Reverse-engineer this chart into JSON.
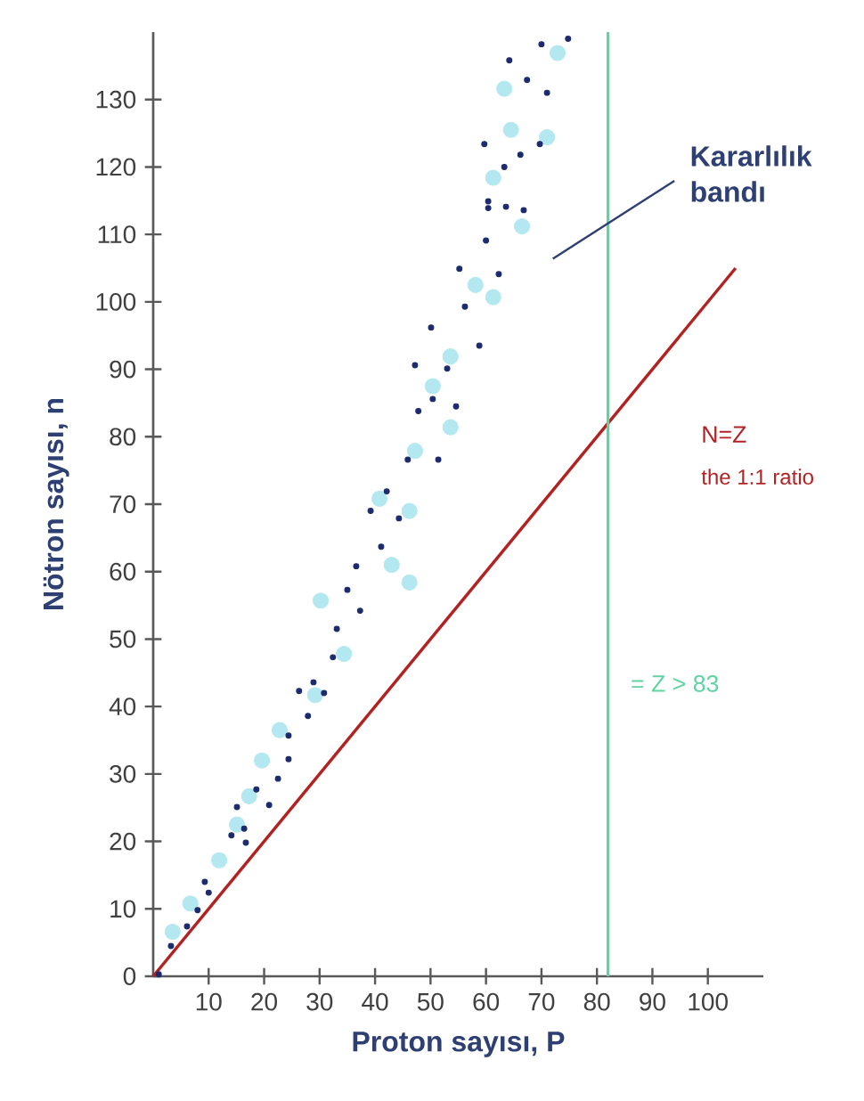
{
  "chart_data": {
    "type": "scatter",
    "xlabel": "Proton sayısı, P",
    "ylabel": "Nötron sayısı, n",
    "xlim": [
      0,
      110
    ],
    "ylim": [
      0,
      140
    ],
    "xticks": [
      10,
      20,
      30,
      40,
      50,
      60,
      70,
      80,
      90,
      100
    ],
    "yticks": [
      0,
      10,
      20,
      30,
      40,
      50,
      60,
      70,
      80,
      90,
      100,
      110,
      120,
      130
    ],
    "grid": false,
    "legend": false,
    "series": [
      {
        "color": "#b4e8f0",
        "x": [
          72.9,
          63.3,
          64.5,
          71.0,
          61.3,
          66.5,
          58.1,
          61.3,
          53.6,
          50.4,
          53.6,
          47.2,
          40.8,
          46.2,
          43.0,
          46.2,
          30.2,
          34.4,
          29.2,
          22.8,
          19.6,
          17.3,
          15.1,
          11.9,
          6.7,
          3.5
        ],
        "values": [
          136.9,
          131.6,
          125.5,
          124.4,
          118.4,
          111.2,
          102.5,
          100.7,
          91.9,
          87.5,
          81.4,
          77.9,
          70.8,
          69.0,
          61.0,
          58.4,
          55.7,
          47.8,
          41.7,
          36.5,
          32.0,
          26.7,
          22.5,
          17.2,
          10.8,
          6.6
        ]
      },
      {
        "color": "#1c2b6e",
        "x": [
          74.8,
          70.0,
          64.2,
          67.4,
          71.0,
          59.7,
          69.7,
          63.3,
          66.2,
          60.4,
          60.4,
          63.6,
          66.8,
          60.0,
          55.2,
          62.3,
          56.2,
          50.1,
          58.8,
          47.2,
          53.0,
          50.4,
          47.8,
          54.6,
          45.9,
          51.4,
          42.1,
          39.2,
          44.3,
          41.1,
          36.6,
          35.0,
          37.3,
          33.1,
          32.4,
          28.9,
          30.8,
          26.3,
          27.9,
          24.4,
          24.4,
          22.5,
          18.6,
          20.9,
          15.1,
          14.1,
          16.4,
          16.7,
          9.3,
          10.0,
          8.0,
          6.1,
          3.2,
          1.0
        ],
        "values": [
          139.0,
          138.2,
          135.8,
          132.9,
          131.0,
          123.4,
          123.4,
          120.0,
          121.8,
          114.9,
          113.9,
          114.1,
          113.6,
          109.1,
          104.9,
          104.1,
          99.3,
          96.2,
          93.5,
          90.6,
          90.1,
          85.6,
          83.8,
          84.5,
          76.6,
          76.6,
          71.9,
          69.0,
          67.9,
          63.7,
          60.8,
          57.3,
          54.2,
          51.5,
          47.3,
          43.6,
          42.0,
          42.3,
          38.6,
          35.7,
          32.2,
          29.3,
          27.7,
          25.4,
          25.1,
          20.9,
          21.9,
          19.8,
          14.0,
          12.4,
          9.8,
          7.4,
          4.5,
          0.3
        ]
      },
      {
        "type": "line",
        "name": "N=Z",
        "color": "#b22222",
        "x": [
          0,
          105
        ],
        "values": [
          0,
          105
        ]
      }
    ],
    "ref_lines": [
      {
        "axis": "x",
        "value": 82,
        "label": "= Z > 83",
        "color": "#5fd3a0"
      }
    ],
    "annotations": [
      "Kararlılık bandı",
      "the 1:1 ratio"
    ]
  }
}
